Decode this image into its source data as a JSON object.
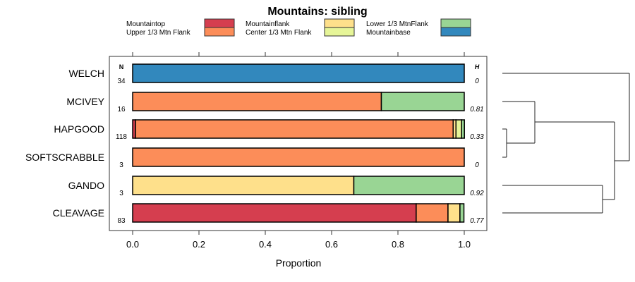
{
  "chart_data": {
    "type": "bar",
    "stacked": true,
    "orientation": "horizontal",
    "title": "Mountains: sibling",
    "xlabel": "Proportion",
    "xlim": [
      0,
      1
    ],
    "xticks": [
      "0.0",
      "0.2",
      "0.4",
      "0.6",
      "0.8",
      "1.0"
    ],
    "n_header": "N",
    "h_header": "H",
    "legend_position": "top",
    "legend": [
      {
        "name": "Mountaintop",
        "color": "#D53E4F"
      },
      {
        "name": "Upper 1/3 Mtn Flank",
        "color": "#FC8D59"
      },
      {
        "name": "Mountainflank",
        "color": "#FEE08B"
      },
      {
        "name": "Center 1/3 Mtn Flank",
        "color": "#E6F598"
      },
      {
        "name": "Lower 1/3 MtnFlank",
        "color": "#99D594"
      },
      {
        "name": "Mountainbase",
        "color": "#3288BD"
      }
    ],
    "categories": [
      "WELCH",
      "MCIVEY",
      "HAPGOOD",
      "SOFTSCRABBLE",
      "GANDO",
      "CLEAVAGE"
    ],
    "n": [
      "34",
      "16",
      "118",
      "3",
      "3",
      "83"
    ],
    "h": [
      "0",
      "0.81",
      "0.33",
      "0",
      "0.92",
      "0.77"
    ],
    "series": [
      {
        "name": "Mountaintop",
        "values": [
          0,
          0,
          0.0085,
          0,
          0,
          0.855
        ]
      },
      {
        "name": "Upper 1/3 Mtn Flank",
        "values": [
          0,
          0.75,
          0.958,
          1,
          0,
          0.096
        ]
      },
      {
        "name": "Mountainflank",
        "values": [
          0,
          0,
          0.0085,
          0,
          0.667,
          0.036
        ]
      },
      {
        "name": "Center 1/3 Mtn Flank",
        "values": [
          0,
          0,
          0.017,
          0,
          0,
          0
        ]
      },
      {
        "name": "Lower 1/3 MtnFlank",
        "values": [
          0,
          0.25,
          0.0085,
          0,
          0.333,
          0.012
        ]
      },
      {
        "name": "Mountainbase",
        "values": [
          1,
          0,
          0,
          0,
          0,
          0
        ]
      }
    ],
    "dendrogram": {
      "merges": [
        [
          "HAPGOOD",
          "SOFTSCRABBLE"
        ],
        [
          "MCIVEY",
          "HAPGOOD+SOFTSCRABBLE"
        ],
        [
          "GANDO",
          "CLEAVAGE"
        ],
        [
          "MCIVEY+HAPGOOD+SOFTSCRABBLE",
          "GANDO+CLEAVAGE"
        ],
        [
          "WELCH",
          "rest"
        ]
      ]
    }
  }
}
